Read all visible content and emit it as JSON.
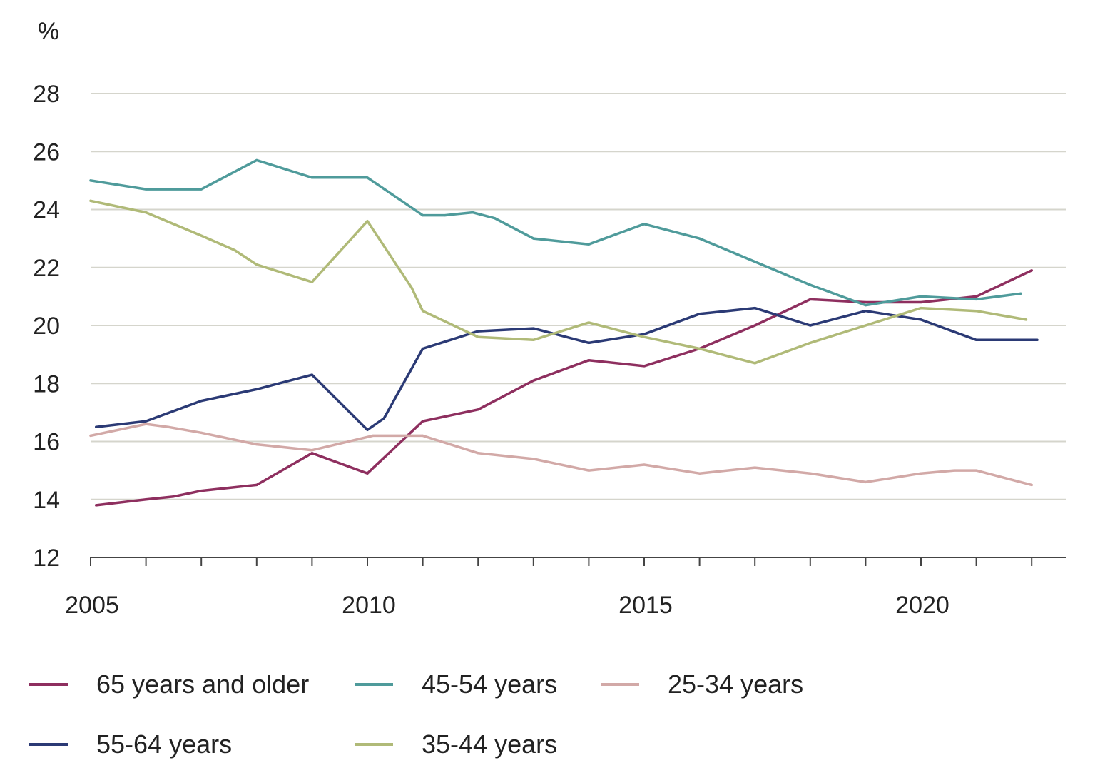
{
  "chart_data": {
    "type": "line",
    "title": "",
    "ylabel": "%",
    "xlabel": "",
    "ylim": [
      12,
      28
    ],
    "yticks": [
      12,
      14,
      16,
      18,
      20,
      22,
      24,
      26,
      28
    ],
    "ytick_labels": [
      "12",
      "14",
      "16",
      "18",
      "20",
      "22",
      "24",
      "26",
      "28"
    ],
    "xlim": [
      2005,
      2022.6
    ],
    "xticks_minor": [
      2005,
      2006,
      2007,
      2008,
      2009,
      2010,
      2011,
      2012,
      2013,
      2014,
      2015,
      2016,
      2017,
      2018,
      2019,
      2020,
      2021,
      2022
    ],
    "xtick_labels": [
      {
        "value": 2005,
        "label": "2005"
      },
      {
        "value": 2010,
        "label": "2010"
      },
      {
        "value": 2015,
        "label": "2015"
      },
      {
        "value": 2020,
        "label": "2020"
      }
    ],
    "grid": true,
    "legend_position": "bottom",
    "series": [
      {
        "name": "65 years and older",
        "color": "#8e2f5f",
        "x": [
          2005.1,
          2006,
          2006.5,
          2007,
          2008,
          2009,
          2010,
          2010.5,
          2011,
          2012,
          2013,
          2014,
          2015,
          2016,
          2017,
          2018,
          2019,
          2020,
          2021,
          2022
        ],
        "y": [
          13.8,
          14.0,
          14.1,
          14.3,
          14.5,
          15.6,
          14.9,
          15.8,
          16.7,
          17.1,
          18.1,
          18.8,
          18.6,
          19.2,
          20.0,
          20.9,
          20.8,
          20.8,
          21.0,
          21.9
        ]
      },
      {
        "name": "45-54 years",
        "color": "#4f9b9b",
        "x": [
          2005,
          2006,
          2007,
          2008,
          2009,
          2010,
          2011,
          2011.4,
          2011.9,
          2012.3,
          2013,
          2014,
          2015,
          2016,
          2017,
          2018,
          2019,
          2020,
          2021,
          2021.8
        ],
        "y": [
          25.0,
          24.7,
          24.7,
          25.7,
          25.1,
          25.1,
          23.8,
          23.8,
          23.9,
          23.7,
          23.0,
          22.8,
          23.5,
          23.0,
          22.2,
          21.4,
          20.7,
          21.0,
          20.9,
          21.1
        ]
      },
      {
        "name": "25-34 years",
        "color": "#d2a9a7",
        "x": [
          2005,
          2006,
          2006.4,
          2007,
          2008,
          2009,
          2010.1,
          2011,
          2012,
          2013,
          2014,
          2015,
          2016,
          2017,
          2018,
          2019,
          2020,
          2020.6,
          2021,
          2022
        ],
        "y": [
          16.2,
          16.6,
          16.5,
          16.3,
          15.9,
          15.7,
          16.2,
          16.2,
          15.6,
          15.4,
          15.0,
          15.2,
          14.9,
          15.1,
          14.9,
          14.6,
          14.9,
          15.0,
          15.0,
          14.5
        ]
      },
      {
        "name": "55-64 years",
        "color": "#2b3a75",
        "x": [
          2005.1,
          2006,
          2007,
          2008,
          2009,
          2010,
          2010.3,
          2011,
          2012,
          2013,
          2014,
          2015,
          2016,
          2017,
          2018,
          2019,
          2020,
          2021,
          2022.1
        ],
        "y": [
          16.5,
          16.7,
          17.4,
          17.8,
          18.3,
          16.4,
          16.8,
          19.2,
          19.8,
          19.9,
          19.4,
          19.7,
          20.4,
          20.6,
          20.0,
          20.5,
          20.2,
          19.5,
          19.5
        ]
      },
      {
        "name": "35-44 years",
        "color": "#b0ba78",
        "x": [
          2005,
          2006,
          2007,
          2007.6,
          2008,
          2009,
          2010,
          2010.8,
          2011,
          2012,
          2013,
          2014,
          2015,
          2016,
          2017,
          2018,
          2019,
          2020,
          2021,
          2021.9
        ],
        "y": [
          24.3,
          23.9,
          23.1,
          22.6,
          22.1,
          21.5,
          23.6,
          21.3,
          20.5,
          19.6,
          19.5,
          20.1,
          19.6,
          19.2,
          18.7,
          19.4,
          20.0,
          20.6,
          20.5,
          20.2
        ]
      }
    ]
  },
  "legend": {
    "items": [
      {
        "label": "65 years and older",
        "color": "#8e2f5f"
      },
      {
        "label": "45-54 years",
        "color": "#4f9b9b"
      },
      {
        "label": "25-34 years",
        "color": "#d2a9a7"
      },
      {
        "label": "55-64 years",
        "color": "#2b3a75"
      },
      {
        "label": "35-44 years",
        "color": "#b0ba78"
      }
    ]
  },
  "colors": {
    "gridline": "#d5d5cc",
    "axis": "#444444",
    "text": "#222222"
  }
}
